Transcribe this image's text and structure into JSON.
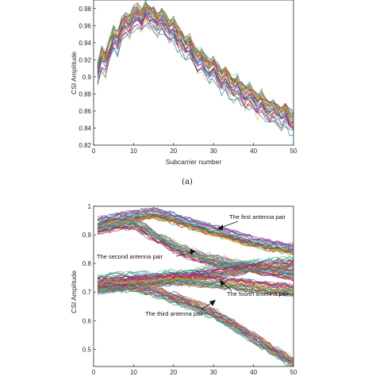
{
  "chart_data": [
    {
      "type": "line",
      "xlabel": "Subcarrier number",
      "ylabel": "CSI Amplitude",
      "xlim": [
        0,
        50
      ],
      "ylim": [
        0.82,
        0.99
      ],
      "xticks": [
        0,
        10,
        20,
        30,
        40,
        50
      ],
      "yticks": [
        0.82,
        0.84,
        0.86,
        0.88,
        0.9,
        0.92,
        0.94,
        0.96,
        0.98
      ],
      "ytick_labels": [
        "0.82",
        "0.84",
        "0.86",
        "0.88",
        "0.9",
        "0.92",
        "0.94",
        "0.96",
        "0.98"
      ],
      "caption": "(a)",
      "grid": false,
      "series": [
        {
          "x": [
            1,
            2,
            3,
            4,
            5,
            6,
            7,
            8,
            9,
            10,
            11,
            12,
            13,
            14,
            15,
            16,
            17,
            18,
            19,
            20,
            21,
            22,
            23,
            24,
            25,
            26,
            27,
            28,
            29,
            30,
            31,
            32,
            33,
            34,
            35,
            36,
            37,
            38,
            39,
            40,
            41,
            42,
            43,
            44,
            45,
            46,
            47,
            48,
            49,
            50
          ],
          "center": [
            0.905,
            0.922,
            0.915,
            0.932,
            0.945,
            0.94,
            0.955,
            0.962,
            0.958,
            0.968,
            0.972,
            0.965,
            0.975,
            0.97,
            0.968,
            0.962,
            0.966,
            0.96,
            0.952,
            0.955,
            0.945,
            0.94,
            0.932,
            0.935,
            0.925,
            0.918,
            0.92,
            0.912,
            0.905,
            0.91,
            0.902,
            0.895,
            0.898,
            0.89,
            0.885,
            0.888,
            0.88,
            0.876,
            0.878,
            0.872,
            0.866,
            0.87,
            0.862,
            0.858,
            0.86,
            0.856,
            0.852,
            0.855,
            0.848,
            0.845
          ],
          "spread": 0.012
        }
      ]
    },
    {
      "type": "line",
      "xlabel": "",
      "ylabel": "CSI Amplitude",
      "xlim": [
        0,
        50
      ],
      "ylim": [
        0.44,
        1.0
      ],
      "xticks": [
        0,
        10,
        20,
        30,
        40,
        50
      ],
      "yticks": [
        0.5,
        0.6,
        0.7,
        0.8,
        0.9,
        1.0
      ],
      "ytick_labels": [
        "0.5",
        "0.6",
        "0.7",
        "0.8",
        "0.9",
        "1"
      ],
      "grid": false,
      "series": [
        {
          "x": [
            1,
            5,
            10,
            15,
            20,
            25,
            30,
            35,
            40,
            45,
            50
          ],
          "center": [
            0.94,
            0.955,
            0.965,
            0.975,
            0.958,
            0.935,
            0.915,
            0.895,
            0.875,
            0.86,
            0.848
          ],
          "spread": 0.018
        },
        {
          "x": [
            1,
            5,
            10,
            15,
            20,
            25,
            30,
            35,
            40,
            45,
            50
          ],
          "center": [
            0.92,
            0.935,
            0.94,
            0.9,
            0.86,
            0.83,
            0.81,
            0.795,
            0.785,
            0.772,
            0.76
          ],
          "spread": 0.018
        },
        {
          "x": [
            1,
            5,
            10,
            15,
            20,
            25,
            30,
            35,
            40,
            45,
            50
          ],
          "center": [
            0.74,
            0.745,
            0.75,
            0.745,
            0.755,
            0.76,
            0.77,
            0.78,
            0.79,
            0.795,
            0.8
          ],
          "spread": 0.02
        },
        {
          "x": [
            1,
            5,
            10,
            15,
            20,
            25,
            30,
            35,
            40,
            45,
            50
          ],
          "center": [
            0.715,
            0.72,
            0.73,
            0.74,
            0.745,
            0.742,
            0.735,
            0.728,
            0.72,
            0.712,
            0.705
          ],
          "spread": 0.018
        },
        {
          "x": [
            1,
            5,
            10,
            15,
            20,
            25,
            30,
            35,
            40,
            45,
            50
          ],
          "center": [
            0.72,
            0.725,
            0.72,
            0.705,
            0.68,
            0.655,
            0.625,
            0.585,
            0.54,
            0.495,
            0.455
          ],
          "spread": 0.018
        }
      ],
      "annotations": [
        {
          "text": "The first antenna pair",
          "arrow_to": [
            31,
            0.915
          ]
        },
        {
          "text": "The second antenna pair",
          "arrow_to": [
            25,
            0.832
          ]
        },
        {
          "text": "The fourth antenna pair",
          "arrow_to": [
            32,
            0.732
          ]
        },
        {
          "text": "The third antenna pair",
          "arrow_to": [
            31,
            0.612
          ]
        }
      ]
    }
  ],
  "colors": [
    "#0072bd",
    "#d95319",
    "#edb120",
    "#7e2f8e",
    "#77ac30",
    "#4dbeee",
    "#a2142f",
    "#1b9e77",
    "#e7298a",
    "#666666"
  ]
}
